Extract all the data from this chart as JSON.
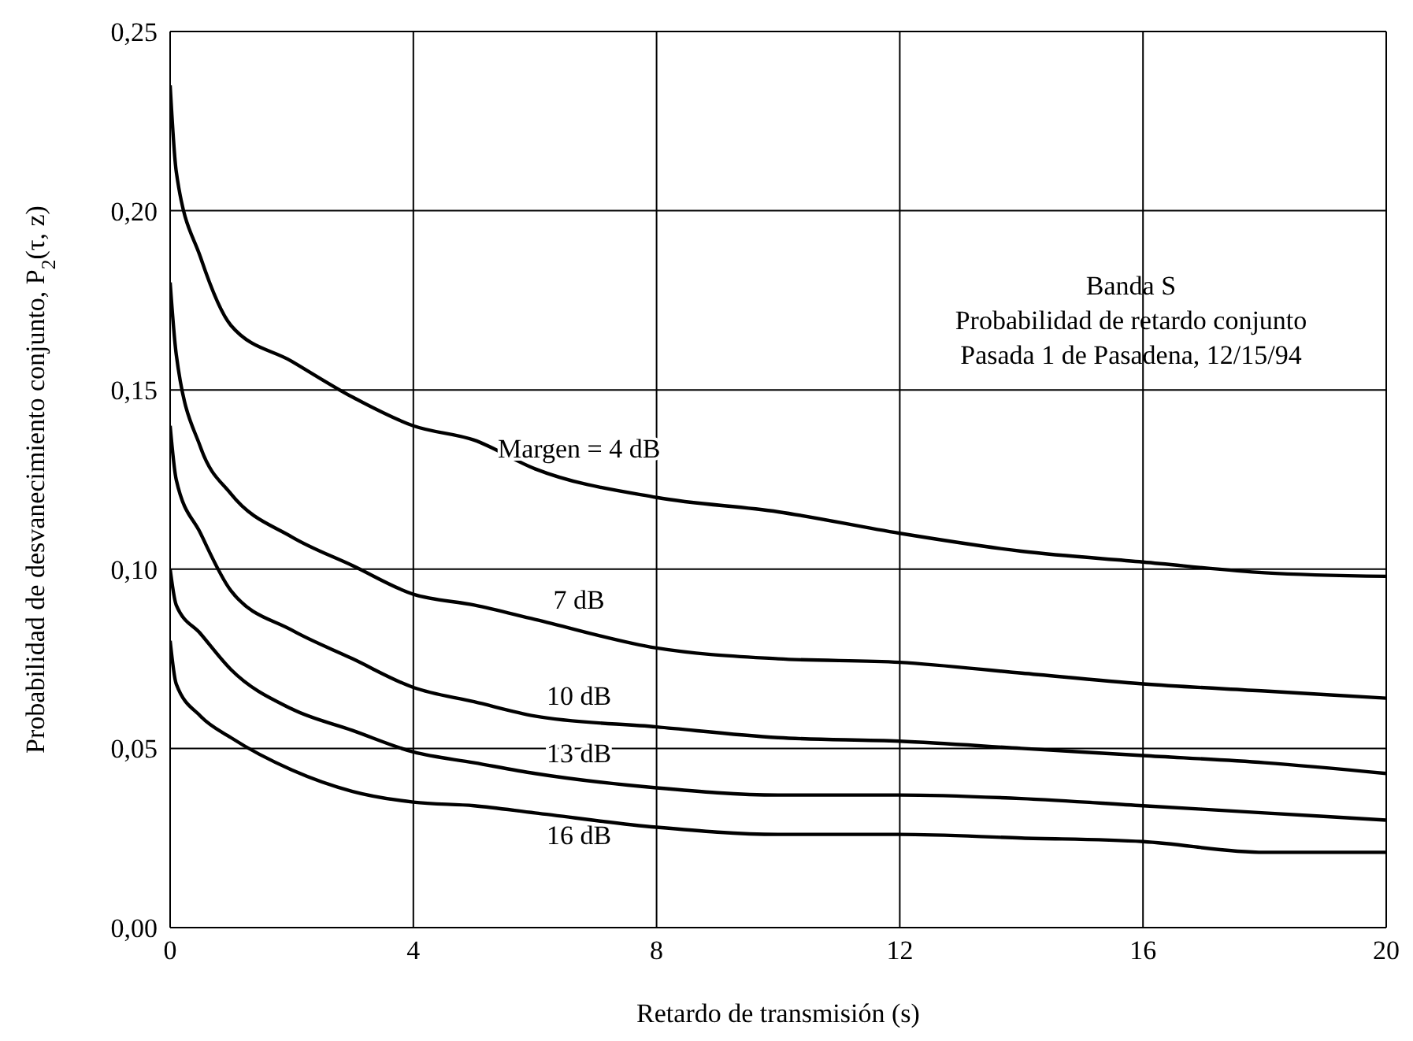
{
  "chart_data": {
    "type": "line",
    "xlabel": "Retardo de transmisión (s)",
    "ylabel": "Probabilidad de desvanecimiento conjunto,   P$_{2}$(τ, z)",
    "x": [
      0,
      0.1,
      0.5,
      1,
      2,
      3,
      4,
      5,
      6,
      8,
      10,
      12,
      14,
      16,
      18,
      20
    ],
    "series": [
      {
        "name": "Margen =  4 dB",
        "color": "#000000",
        "values": [
          0.235,
          0.211,
          0.187,
          0.168,
          0.158,
          0.148,
          0.14,
          0.136,
          0.128,
          0.12,
          0.116,
          0.11,
          0.105,
          0.102,
          0.099,
          0.098
        ]
      },
      {
        "name": "7 dB",
        "color": "#000000",
        "values": [
          0.18,
          0.16,
          0.134,
          0.121,
          0.109,
          0.101,
          0.093,
          0.09,
          0.086,
          0.078,
          0.075,
          0.074,
          0.071,
          0.068,
          0.066,
          0.064
        ]
      },
      {
        "name": "10 dB",
        "color": "#000000",
        "values": [
          0.14,
          0.125,
          0.11,
          0.094,
          0.083,
          0.075,
          0.067,
          0.063,
          0.059,
          0.056,
          0.053,
          0.052,
          0.05,
          0.048,
          0.046,
          0.043
        ]
      },
      {
        "name": "13 dB",
        "color": "#000000",
        "values": [
          0.1,
          0.09,
          0.082,
          0.072,
          0.061,
          0.055,
          0.049,
          0.046,
          0.043,
          0.039,
          0.037,
          0.037,
          0.036,
          0.034,
          0.032,
          0.03
        ]
      },
      {
        "name": "16 dB",
        "color": "#000000",
        "values": [
          0.08,
          0.068,
          0.059,
          0.053,
          0.044,
          0.038,
          0.035,
          0.034,
          0.032,
          0.028,
          0.026,
          0.026,
          0.025,
          0.024,
          0.021,
          0.021
        ]
      }
    ],
    "xlim": [
      0,
      20
    ],
    "xticks": [
      0,
      4,
      8,
      12,
      16,
      20
    ],
    "ylim": [
      0,
      0.25
    ],
    "yticks": [
      {
        "value": 0,
        "label": "0,00"
      },
      {
        "value": 0.05,
        "label": "0,05"
      },
      {
        "value": 0.1,
        "label": "0,10"
      },
      {
        "value": 0.15,
        "label": "0,15"
      },
      {
        "value": 0.2,
        "label": "0,20"
      },
      {
        "value": 0.25,
        "label": "0,25"
      }
    ],
    "grid": true,
    "legend": false,
    "marker": "none",
    "line_style": "solid",
    "annotations": [
      "Banda S",
      "Probabilidad de retardo conjunto",
      "Pasada 1 de Pasadena, 12/15/94"
    ]
  }
}
